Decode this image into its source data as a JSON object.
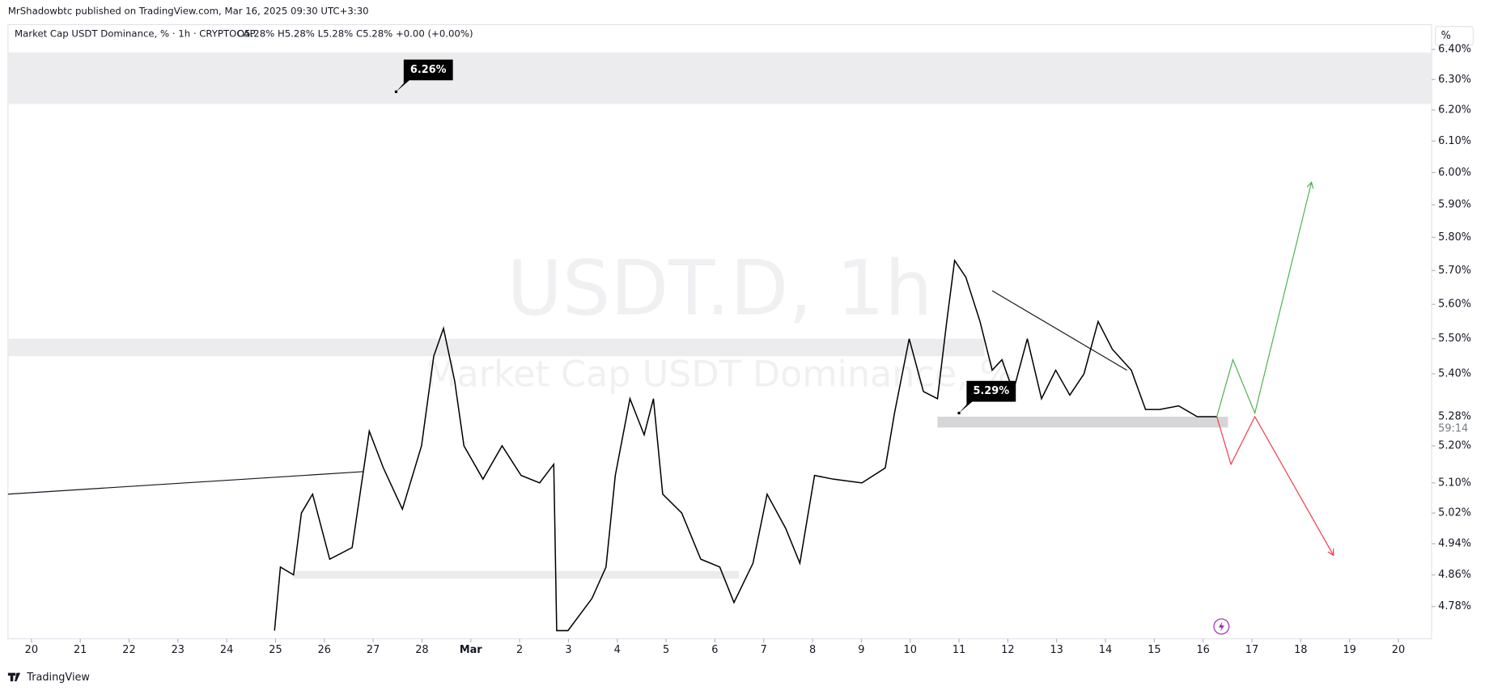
{
  "header": {
    "publisher": "MrShadowbtc published on TradingView.com, Mar 16, 2025 09:30 UTC+3:30",
    "footer": "TradingView"
  },
  "chart_data": {
    "type": "line",
    "symbol": "Market Cap USDT Dominance, % · 1h · CRYPTOCAP",
    "ohlc": "O5.28%  H5.28%  L5.28%  C5.28%  +0.00 (+0.00%)",
    "watermark": "USDT.D, 1h",
    "watermark_sub": "Market Cap USDT Dominance, %",
    "axis_unit": "%",
    "log_scale": true,
    "xlim": [
      -0.48,
      28.68
    ],
    "ylim": [
      4.7,
      6.42
    ],
    "xticks": [
      {
        "value": 0,
        "label": "20"
      },
      {
        "value": 1,
        "label": "21"
      },
      {
        "value": 2,
        "label": "22"
      },
      {
        "value": 3,
        "label": "23"
      },
      {
        "value": 4,
        "label": "24"
      },
      {
        "value": 5,
        "label": "25"
      },
      {
        "value": 6,
        "label": "26"
      },
      {
        "value": 7,
        "label": "27"
      },
      {
        "value": 8,
        "label": "28"
      },
      {
        "value": 9,
        "label": "Mar"
      },
      {
        "value": 10,
        "label": "2"
      },
      {
        "value": 11,
        "label": "3"
      },
      {
        "value": 12,
        "label": "4"
      },
      {
        "value": 13,
        "label": "5"
      },
      {
        "value": 14,
        "label": "6"
      },
      {
        "value": 15,
        "label": "7"
      },
      {
        "value": 16,
        "label": "8"
      },
      {
        "value": 17,
        "label": "9"
      },
      {
        "value": 18,
        "label": "10"
      },
      {
        "value": 19,
        "label": "11"
      },
      {
        "value": 20,
        "label": "12"
      },
      {
        "value": 21,
        "label": "13"
      },
      {
        "value": 22,
        "label": "14"
      },
      {
        "value": 23,
        "label": "15"
      },
      {
        "value": 24,
        "label": "16"
      },
      {
        "value": 25,
        "label": "17"
      },
      {
        "value": 26,
        "label": "18"
      },
      {
        "value": 27,
        "label": "19"
      },
      {
        "value": 28,
        "label": "20"
      }
    ],
    "yticks": [
      {
        "value": 6.4,
        "label": "6.40%"
      },
      {
        "value": 6.3,
        "label": "6.30%"
      },
      {
        "value": 6.2,
        "label": "6.20%"
      },
      {
        "value": 6.1,
        "label": "6.10%"
      },
      {
        "value": 6.0,
        "label": "6.00%"
      },
      {
        "value": 5.9,
        "label": "5.90%"
      },
      {
        "value": 5.8,
        "label": "5.80%"
      },
      {
        "value": 5.7,
        "label": "5.70%"
      },
      {
        "value": 5.6,
        "label": "5.60%"
      },
      {
        "value": 5.5,
        "label": "5.50%"
      },
      {
        "value": 5.4,
        "label": "5.40%"
      },
      {
        "value": 5.2,
        "label": "5.20%"
      },
      {
        "value": 5.1,
        "label": "5.10%"
      },
      {
        "value": 5.02,
        "label": "5.02%"
      },
      {
        "value": 4.94,
        "label": "4.94%"
      },
      {
        "value": 4.86,
        "label": "4.86%"
      },
      {
        "value": 4.78,
        "label": "4.78%"
      }
    ],
    "series": [
      {
        "color": "#000000",
        "x": [
          4.98,
          5.1,
          5.37,
          5.53,
          5.76,
          6.11,
          6.57,
          6.92,
          7.21,
          7.6,
          7.99,
          8.24,
          8.44,
          8.67,
          8.86,
          9.25,
          9.64,
          10.03,
          10.41,
          10.7,
          10.76,
          10.99,
          11.48,
          11.77,
          11.96,
          12.26,
          12.55,
          12.74,
          12.93,
          13.32,
          13.71,
          14.1,
          14.39,
          14.78,
          15.07,
          15.45,
          15.74,
          16.04,
          16.42,
          17.01,
          17.49,
          17.68,
          17.98,
          18.27,
          18.56,
          18.75,
          18.91,
          19.14,
          19.43,
          19.68,
          19.88,
          20.11,
          20.4,
          20.69,
          20.98,
          21.27,
          21.56,
          21.85,
          22.14,
          22.53,
          22.82,
          23.11,
          23.5,
          23.88,
          24.28
        ],
        "values": [
          4.72,
          4.88,
          4.86,
          5.02,
          5.07,
          4.9,
          4.93,
          5.24,
          5.14,
          5.03,
          5.2,
          5.45,
          5.53,
          5.38,
          5.2,
          5.11,
          5.2,
          5.12,
          5.1,
          5.15,
          4.72,
          4.72,
          4.8,
          4.88,
          5.12,
          5.33,
          5.23,
          5.33,
          5.07,
          5.02,
          4.9,
          4.88,
          4.79,
          4.89,
          5.07,
          4.98,
          4.89,
          5.12,
          5.11,
          5.1,
          5.14,
          5.29,
          5.5,
          5.35,
          5.33,
          5.55,
          5.73,
          5.68,
          5.55,
          5.41,
          5.44,
          5.35,
          5.5,
          5.33,
          5.41,
          5.34,
          5.4,
          5.55,
          5.47,
          5.41,
          5.3,
          5.3,
          5.31,
          5.28,
          5.28
        ]
      },
      {
        "color": "#4caf50",
        "x": [
          24.28,
          24.61,
          25.06,
          26.22
        ],
        "values": [
          5.28,
          5.44,
          5.29,
          5.97
        ]
      },
      {
        "color": "#f23645",
        "x": [
          24.28,
          24.57,
          25.06,
          26.67
        ],
        "values": [
          5.28,
          5.15,
          5.28,
          4.91
        ]
      }
    ],
    "zones": [
      {
        "x": [
          -0.48,
          28.68
        ],
        "y": [
          6.22,
          6.39
        ]
      },
      {
        "x": [
          -0.48,
          19.52
        ],
        "y": [
          5.45,
          5.5
        ]
      },
      {
        "x": [
          5.37,
          14.49
        ],
        "y": [
          4.85,
          4.87
        ]
      },
      {
        "x": [
          18.56,
          24.51
        ],
        "y": [
          5.25,
          5.28
        ]
      }
    ],
    "trendlines": [
      {
        "x": [
          -0.48,
          6.79
        ],
        "y": [
          5.07,
          5.13
        ]
      },
      {
        "x": [
          19.68,
          22.44
        ],
        "y": [
          5.64,
          5.41
        ]
      }
    ],
    "callouts": [
      {
        "x": 7.47,
        "value": 6.26,
        "label": "6.26%"
      },
      {
        "x": 19.0,
        "value": 5.29,
        "label": "5.29%"
      }
    ],
    "last_price": {
      "value": 5.28,
      "label": "5.28%"
    },
    "countdown": "59:14"
  }
}
